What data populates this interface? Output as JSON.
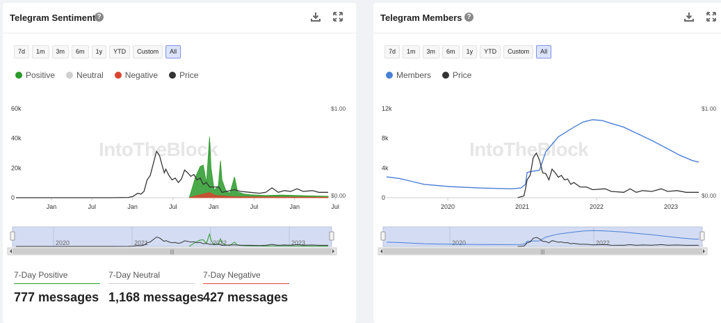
{
  "panels": [
    {
      "title": "Telegram Sentiment",
      "ranges": [
        "7d",
        "1m",
        "3m",
        "6m",
        "1y",
        "YTD",
        "Custom",
        "All"
      ],
      "active_range": "All",
      "legend": [
        {
          "label": "Positive",
          "color": "#2a9a2a"
        },
        {
          "label": "Neutral",
          "color": "#cfcfcf"
        },
        {
          "label": "Negative",
          "color": "#d9442f"
        },
        {
          "label": "Price",
          "color": "#333333"
        }
      ],
      "watermark": "IntoTheBlock",
      "stats": [
        {
          "label": "7-Day Positive",
          "value": "777 messages",
          "color": "#2a9a2a"
        },
        {
          "label": "7-Day Neutral",
          "value": "1,168 messages",
          "color": "#cccccc"
        },
        {
          "label": "7-Day Negative",
          "value": "427 messages",
          "color": "#d9442f"
        }
      ]
    },
    {
      "title": "Telegram Members",
      "ranges": [
        "7d",
        "1m",
        "3m",
        "6m",
        "1y",
        "YTD",
        "Custom",
        "All"
      ],
      "active_range": "All",
      "legend": [
        {
          "label": "Members",
          "color": "#4a7fd6"
        },
        {
          "label": "Price",
          "color": "#333333"
        }
      ],
      "watermark": "IntoTheBlock"
    }
  ],
  "chart_data": [
    {
      "type": "area",
      "title": "Telegram Sentiment",
      "y_ticks": [
        "60k",
        "40k",
        "20k",
        "0"
      ],
      "ylim": [
        0,
        60000
      ],
      "y2_ticks": [
        "$1.00",
        "$0.00"
      ],
      "x_ticks": [
        "Jan",
        "Jul",
        "Jan",
        "Jul",
        "Jan",
        "Jul",
        "Jan",
        "Jul"
      ],
      "navigator_ticks": [
        "2020",
        "2021",
        "2022",
        "2023"
      ],
      "series": [
        {
          "name": "Positive",
          "color": "#2a9a2a",
          "points": [
            [
              0.555,
              0
            ],
            [
              0.575,
              14000
            ],
            [
              0.59,
              21000
            ],
            [
              0.6,
              22000
            ],
            [
              0.61,
              10000
            ],
            [
              0.62,
              41000
            ],
            [
              0.625,
              20000
            ],
            [
              0.635,
              5000
            ],
            [
              0.648,
              8000
            ],
            [
              0.655,
              25000
            ],
            [
              0.66,
              12000
            ],
            [
              0.672,
              5000
            ],
            [
              0.685,
              3000
            ],
            [
              0.7,
              14000
            ],
            [
              0.71,
              4000
            ],
            [
              0.73,
              2500
            ],
            [
              0.75,
              2000
            ],
            [
              0.8,
              1500
            ],
            [
              0.85,
              1800
            ],
            [
              0.9,
              1500
            ],
            [
              0.95,
              1200
            ],
            [
              1.0,
              1000
            ]
          ]
        },
        {
          "name": "Negative",
          "color": "#d9442f",
          "points": [
            [
              0.555,
              0
            ],
            [
              0.58,
              1500
            ],
            [
              0.6,
              2500
            ],
            [
              0.62,
              3500
            ],
            [
              0.64,
              1500
            ],
            [
              0.66,
              1200
            ],
            [
              0.7,
              700
            ],
            [
              0.8,
              500
            ],
            [
              0.9,
              400
            ],
            [
              1.0,
              300
            ]
          ]
        },
        {
          "name": "Price",
          "color": "#333333",
          "points": [
            [
              0,
              0
            ],
            [
              0.3,
              0
            ],
            [
              0.36,
              0.003
            ],
            [
              0.375,
              0.015
            ],
            [
              0.39,
              0.05
            ],
            [
              0.4,
              0.04
            ],
            [
              0.41,
              0.07
            ],
            [
              0.42,
              0.2
            ],
            [
              0.43,
              0.25
            ],
            [
              0.45,
              0.52
            ],
            [
              0.46,
              0.47
            ],
            [
              0.47,
              0.34
            ],
            [
              0.475,
              0.28
            ],
            [
              0.48,
              0.32
            ],
            [
              0.49,
              0.25
            ],
            [
              0.5,
              0.2
            ],
            [
              0.51,
              0.22
            ],
            [
              0.52,
              0.17
            ],
            [
              0.53,
              0.21
            ],
            [
              0.54,
              0.31
            ],
            [
              0.55,
              0.28
            ],
            [
              0.56,
              0.24
            ],
            [
              0.57,
              0.26
            ],
            [
              0.58,
              0.2
            ],
            [
              0.59,
              0.22
            ],
            [
              0.6,
              0.15
            ],
            [
              0.61,
              0.17
            ],
            [
              0.62,
              0.12
            ],
            [
              0.65,
              0.12
            ],
            [
              0.66,
              0.06
            ],
            [
              0.7,
              0.09
            ],
            [
              0.72,
              0.07
            ],
            [
              0.75,
              0.06
            ],
            [
              0.78,
              0.05
            ],
            [
              0.8,
              0.06
            ],
            [
              0.82,
              0.11
            ],
            [
              0.84,
              0.06
            ],
            [
              0.86,
              0.08
            ],
            [
              0.88,
              0.07
            ],
            [
              0.9,
              0.1
            ],
            [
              0.92,
              0.07
            ],
            [
              0.95,
              0.08
            ],
            [
              0.97,
              0.06
            ],
            [
              1.0,
              0.06
            ]
          ]
        }
      ]
    },
    {
      "type": "line",
      "title": "Telegram Members",
      "y_ticks": [
        "12k",
        "8k",
        "4k",
        "0"
      ],
      "ylim": [
        0,
        12000
      ],
      "y2_ticks": [
        "$1.00",
        "$0.00"
      ],
      "x_ticks": [
        "2020",
        "2021",
        "2022",
        "2023"
      ],
      "navigator_ticks": [
        "2020",
        "2022"
      ],
      "series": [
        {
          "name": "Members",
          "color": "#4a7fd6",
          "points": [
            [
              0,
              2800
            ],
            [
              0.04,
              2600
            ],
            [
              0.08,
              2200
            ],
            [
              0.12,
              1800
            ],
            [
              0.2,
              1500
            ],
            [
              0.3,
              1300
            ],
            [
              0.4,
              1200
            ],
            [
              0.43,
              1300
            ],
            [
              0.445,
              1800
            ],
            [
              0.45,
              3400
            ],
            [
              0.46,
              3500
            ],
            [
              0.49,
              3700
            ],
            [
              0.51,
              6200
            ],
            [
              0.55,
              8200
            ],
            [
              0.6,
              9500
            ],
            [
              0.63,
              10200
            ],
            [
              0.66,
              10500
            ],
            [
              0.69,
              10400
            ],
            [
              0.72,
              10000
            ],
            [
              0.76,
              9500
            ],
            [
              0.8,
              8700
            ],
            [
              0.85,
              7700
            ],
            [
              0.9,
              6600
            ],
            [
              0.94,
              5700
            ],
            [
              0.98,
              5000
            ],
            [
              1.0,
              4800
            ]
          ]
        },
        {
          "name": "Price",
          "color": "#333333",
          "points": [
            [
              0.42,
              0.0
            ],
            [
              0.44,
              0.02
            ],
            [
              0.445,
              0.1
            ],
            [
              0.45,
              0.2
            ],
            [
              0.46,
              0.25
            ],
            [
              0.47,
              0.45
            ],
            [
              0.48,
              0.5
            ],
            [
              0.49,
              0.42
            ],
            [
              0.5,
              0.28
            ],
            [
              0.51,
              0.27
            ],
            [
              0.52,
              0.2
            ],
            [
              0.53,
              0.32
            ],
            [
              0.54,
              0.28
            ],
            [
              0.55,
              0.23
            ],
            [
              0.56,
              0.25
            ],
            [
              0.57,
              0.2
            ],
            [
              0.58,
              0.21
            ],
            [
              0.59,
              0.15
            ],
            [
              0.6,
              0.17
            ],
            [
              0.62,
              0.12
            ],
            [
              0.64,
              0.12
            ],
            [
              0.66,
              0.09
            ],
            [
              0.7,
              0.1
            ],
            [
              0.72,
              0.07
            ],
            [
              0.76,
              0.06
            ],
            [
              0.78,
              0.1
            ],
            [
              0.8,
              0.06
            ],
            [
              0.82,
              0.08
            ],
            [
              0.85,
              0.07
            ],
            [
              0.88,
              0.1
            ],
            [
              0.9,
              0.07
            ],
            [
              0.93,
              0.08
            ],
            [
              0.96,
              0.06
            ],
            [
              1.0,
              0.06
            ]
          ]
        }
      ]
    }
  ]
}
